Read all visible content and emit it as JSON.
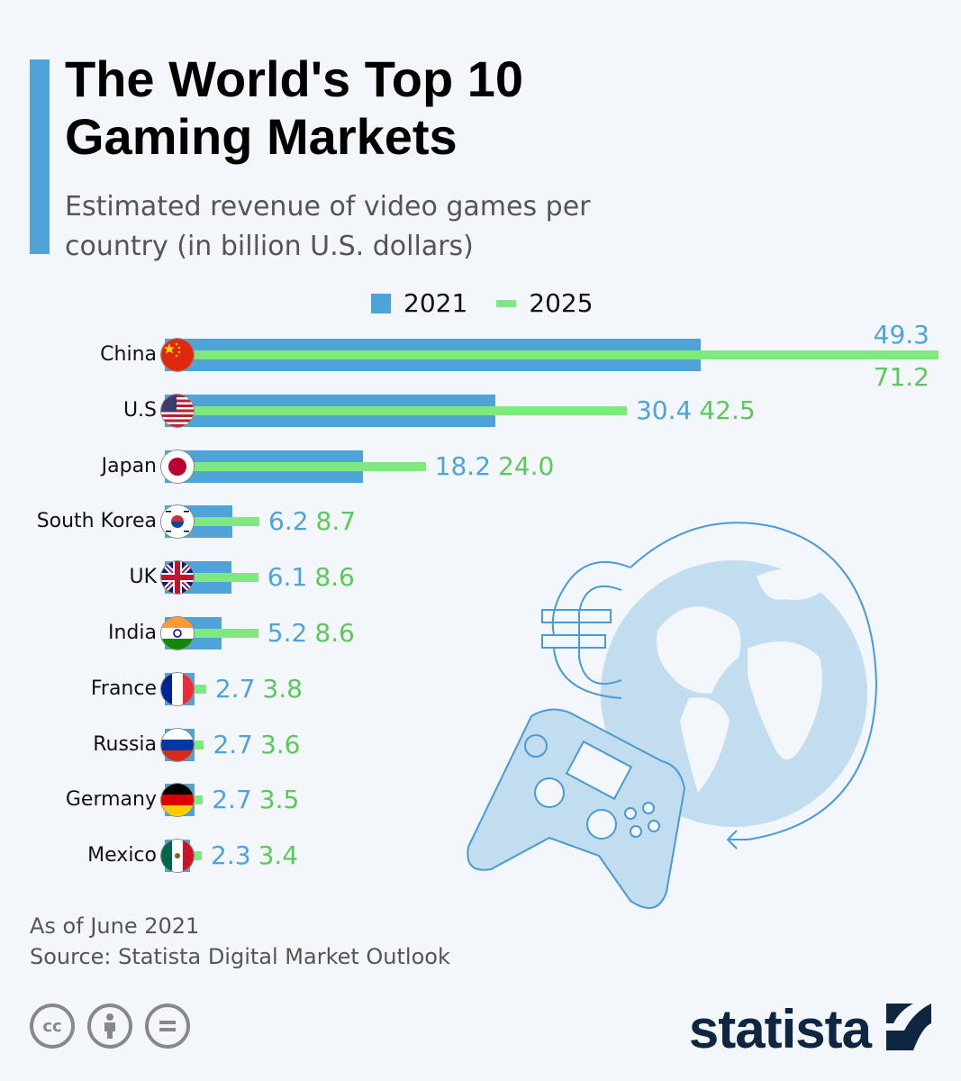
{
  "header": {
    "title": "The World's Top 10 Gaming Markets",
    "subtitle": "Estimated revenue of video games per country (in billion U.S. dollars)"
  },
  "legend": {
    "series_2021": "2021",
    "series_2025": "2025"
  },
  "colors": {
    "series_2021": "#4ea4d9",
    "series_2025": "#7fe87f",
    "label_2025": "#5cc85c",
    "accent": "#4ea4d9",
    "background": "#f3f7fb",
    "logo": "#0e2640"
  },
  "rows": [
    {
      "country": "China",
      "flag": "china-flag",
      "v2021": "49.3",
      "v2025": "71.2"
    },
    {
      "country": "U.S",
      "flag": "us-flag",
      "v2021": "30.4",
      "v2025": "42.5"
    },
    {
      "country": "Japan",
      "flag": "japan-flag",
      "v2021": "18.2",
      "v2025": "24.0"
    },
    {
      "country": "South Korea",
      "flag": "south-korea-flag",
      "v2021": "6.2",
      "v2025": "8.7"
    },
    {
      "country": "UK",
      "flag": "uk-flag",
      "v2021": "6.1",
      "v2025": "8.6"
    },
    {
      "country": "India",
      "flag": "india-flag",
      "v2021": "5.2",
      "v2025": "8.6"
    },
    {
      "country": "France",
      "flag": "france-flag",
      "v2021": "2.7",
      "v2025": "3.8"
    },
    {
      "country": "Russia",
      "flag": "russia-flag",
      "v2021": "2.7",
      "v2025": "3.6"
    },
    {
      "country": "Germany",
      "flag": "germany-flag",
      "v2021": "2.7",
      "v2025": "3.5"
    },
    {
      "country": "Mexico",
      "flag": "mexico-flag",
      "v2021": "2.3",
      "v2025": "3.4"
    }
  ],
  "footer": {
    "note": "As of June 2021",
    "source": "Source: Statista Digital Market Outlook",
    "license_icons": [
      "cc-icon",
      "attribution-icon",
      "no-derivatives-icon"
    ],
    "cc_label": "cc",
    "logo": "statista"
  },
  "chart_data": {
    "type": "bar",
    "orientation": "horizontal",
    "title": "The World's Top 10 Gaming Markets",
    "subtitle": "Estimated revenue of video games per country (in billion U.S. dollars)",
    "categories": [
      "China",
      "U.S",
      "Japan",
      "South Korea",
      "UK",
      "India",
      "France",
      "Russia",
      "Germany",
      "Mexico"
    ],
    "series": [
      {
        "name": "2021",
        "values": [
          49.3,
          30.4,
          18.2,
          6.2,
          6.1,
          5.2,
          2.7,
          2.7,
          2.7,
          2.3
        ]
      },
      {
        "name": "2025",
        "values": [
          71.2,
          42.5,
          24.0,
          8.7,
          8.6,
          8.6,
          3.8,
          3.6,
          3.5,
          3.4
        ]
      }
    ],
    "xlabel": "",
    "ylabel": "",
    "legend_position": "top",
    "grid": false,
    "annotations": [
      "As of June 2021",
      "Source: Statista Digital Market Outlook"
    ]
  }
}
